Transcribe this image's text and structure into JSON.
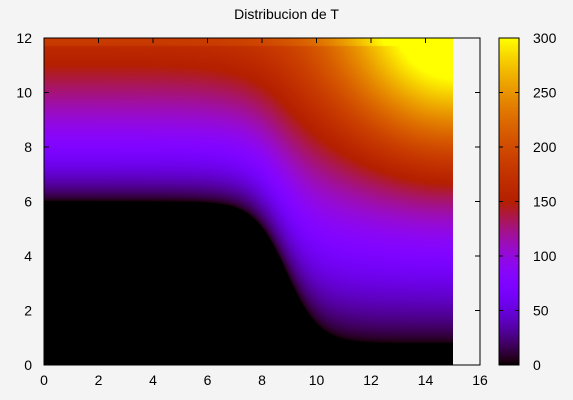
{
  "chart_data": {
    "type": "heatmap",
    "title": "Distribucion de T",
    "xlabel": "",
    "ylabel": "",
    "xlim": [
      0,
      16
    ],
    "ylim": [
      0,
      12
    ],
    "data_extent": {
      "x": [
        0,
        15
      ],
      "y": [
        0,
        12
      ]
    },
    "x_ticks": [
      "0",
      "2",
      "4",
      "6",
      "8",
      "10",
      "12",
      "14",
      "16"
    ],
    "y_ticks": [
      "0",
      "2",
      "4",
      "6",
      "8",
      "10",
      "12"
    ],
    "colorbar": {
      "range": [
        0,
        300
      ],
      "ticks": [
        "0",
        "50",
        "100",
        "150",
        "200",
        "250",
        "300"
      ],
      "palette": "black-blue-purple-red-orange-yellow (gnuplot pm3d default)"
    },
    "field_description": "Temperature field: 0 in lower-left region, rising toward the top-right corner (~300 at x=15, y=12)",
    "grid": false,
    "legend": "none"
  }
}
